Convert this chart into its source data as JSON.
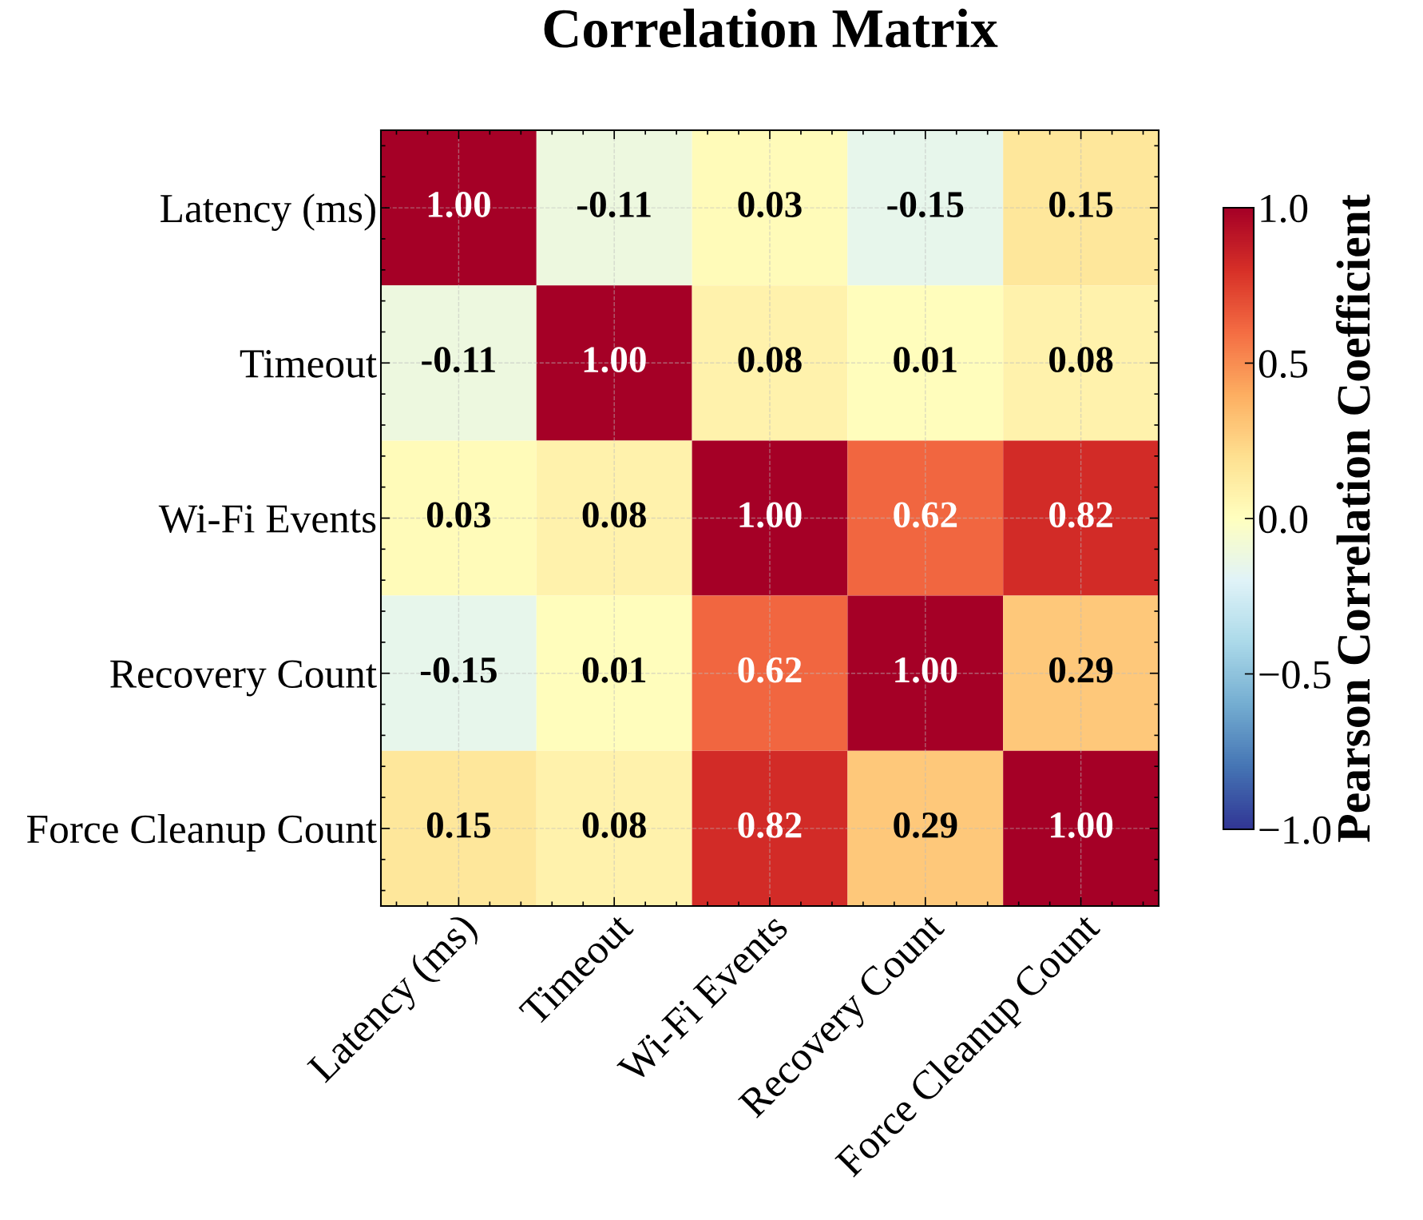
{
  "chart_data": {
    "type": "heatmap",
    "title": "Correlation Matrix",
    "clabel": "Pearson Correlation Coefficient",
    "categories": [
      "Latency (ms)",
      "Timeout",
      "Wi-Fi Events",
      "Recovery Count",
      "Force Cleanup Count"
    ],
    "y_categories": [
      "Latency (ms)",
      "Timeout",
      "Wi-Fi Events",
      "Recovery Count",
      "Force Cleanup Count"
    ],
    "cells": [
      [
        1.0,
        -0.11,
        0.03,
        -0.15,
        0.15
      ],
      [
        -0.11,
        1.0,
        0.08,
        0.01,
        0.08
      ],
      [
        0.03,
        0.08,
        1.0,
        0.62,
        0.82
      ],
      [
        -0.15,
        0.01,
        0.62,
        1.0,
        0.29
      ],
      [
        0.15,
        0.08,
        0.82,
        0.29,
        1.0
      ]
    ],
    "clim": [
      -1,
      1
    ],
    "cticks": [
      {
        "value": -1,
        "label": "−1.0"
      },
      {
        "value": -0.5,
        "label": "−0.5"
      },
      {
        "value": 0,
        "label": "0.0"
      },
      {
        "value": 0.5,
        "label": "0.5"
      },
      {
        "value": 1,
        "label": "1.0"
      }
    ],
    "cell_labels": [
      [
        "1.00",
        "-0.11",
        "0.03",
        "-0.15",
        "0.15"
      ],
      [
        "-0.11",
        "1.00",
        "0.08",
        "0.01",
        "0.08"
      ],
      [
        "0.03",
        "0.08",
        "1.00",
        "0.62",
        "0.82"
      ],
      [
        "-0.15",
        "0.01",
        "0.62",
        "1.00",
        "0.29"
      ],
      [
        "0.15",
        "0.08",
        "0.82",
        "0.29",
        "1.00"
      ]
    ],
    "grid": true
  }
}
